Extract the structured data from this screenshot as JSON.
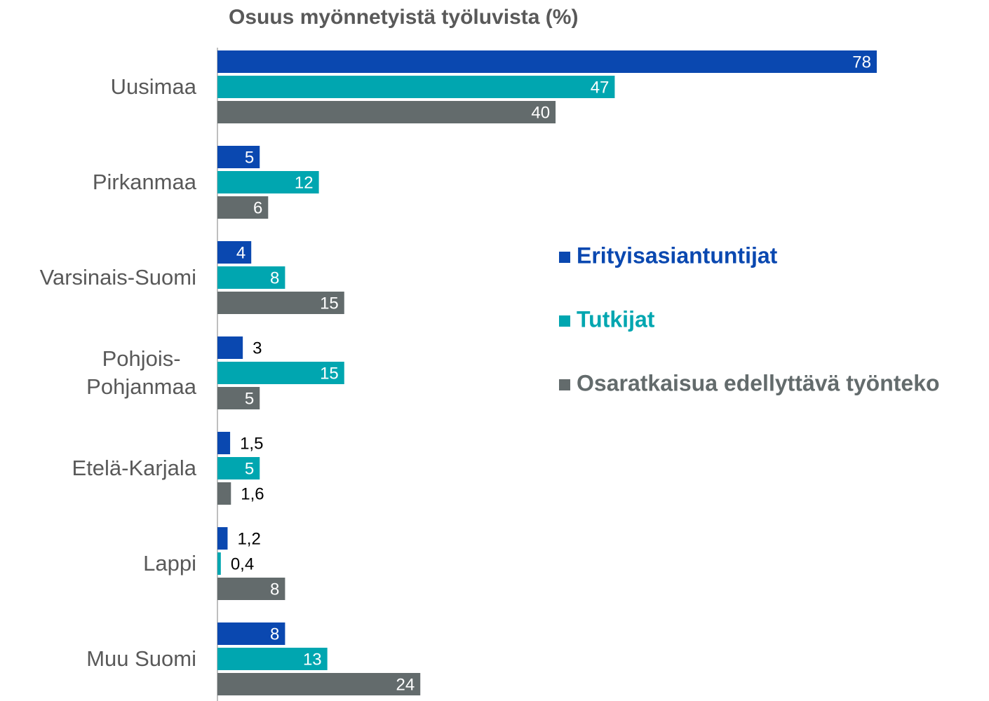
{
  "chart_data": {
    "type": "bar",
    "orientation": "horizontal",
    "title": "Osuus myönnetyistä työluvista (%)",
    "categories": [
      "Uusimaa",
      "Pirkanmaa",
      "Varsinais-Suomi",
      "Pohjois-\nPohjanmaa",
      "Etelä-Karjala",
      "Lappi",
      "Muu Suomi"
    ],
    "series": [
      {
        "name": "Erityisasiantuntijat",
        "color": "#0a48b0",
        "values": [
          78,
          5,
          4,
          3,
          1.5,
          1.2,
          8
        ],
        "value_labels": [
          "78",
          "5",
          "4",
          "3",
          "1,5",
          "1,2",
          "8"
        ]
      },
      {
        "name": "Tutkijat",
        "color": "#00a6b0",
        "values": [
          47,
          12,
          8,
          15,
          5,
          0.4,
          13
        ],
        "value_labels": [
          "47",
          "12",
          "8",
          "15",
          "5",
          "0,4",
          "13"
        ]
      },
      {
        "name": "Osaratkaisua edellyttävä työnteko",
        "color": "#636b6c",
        "values": [
          40,
          6,
          15,
          5,
          1.6,
          8,
          24
        ],
        "value_labels": [
          "40",
          "6",
          "15",
          "5",
          "1,6",
          "8",
          "24"
        ]
      }
    ],
    "xlim": [
      0,
      78
    ],
    "legend": "right"
  }
}
